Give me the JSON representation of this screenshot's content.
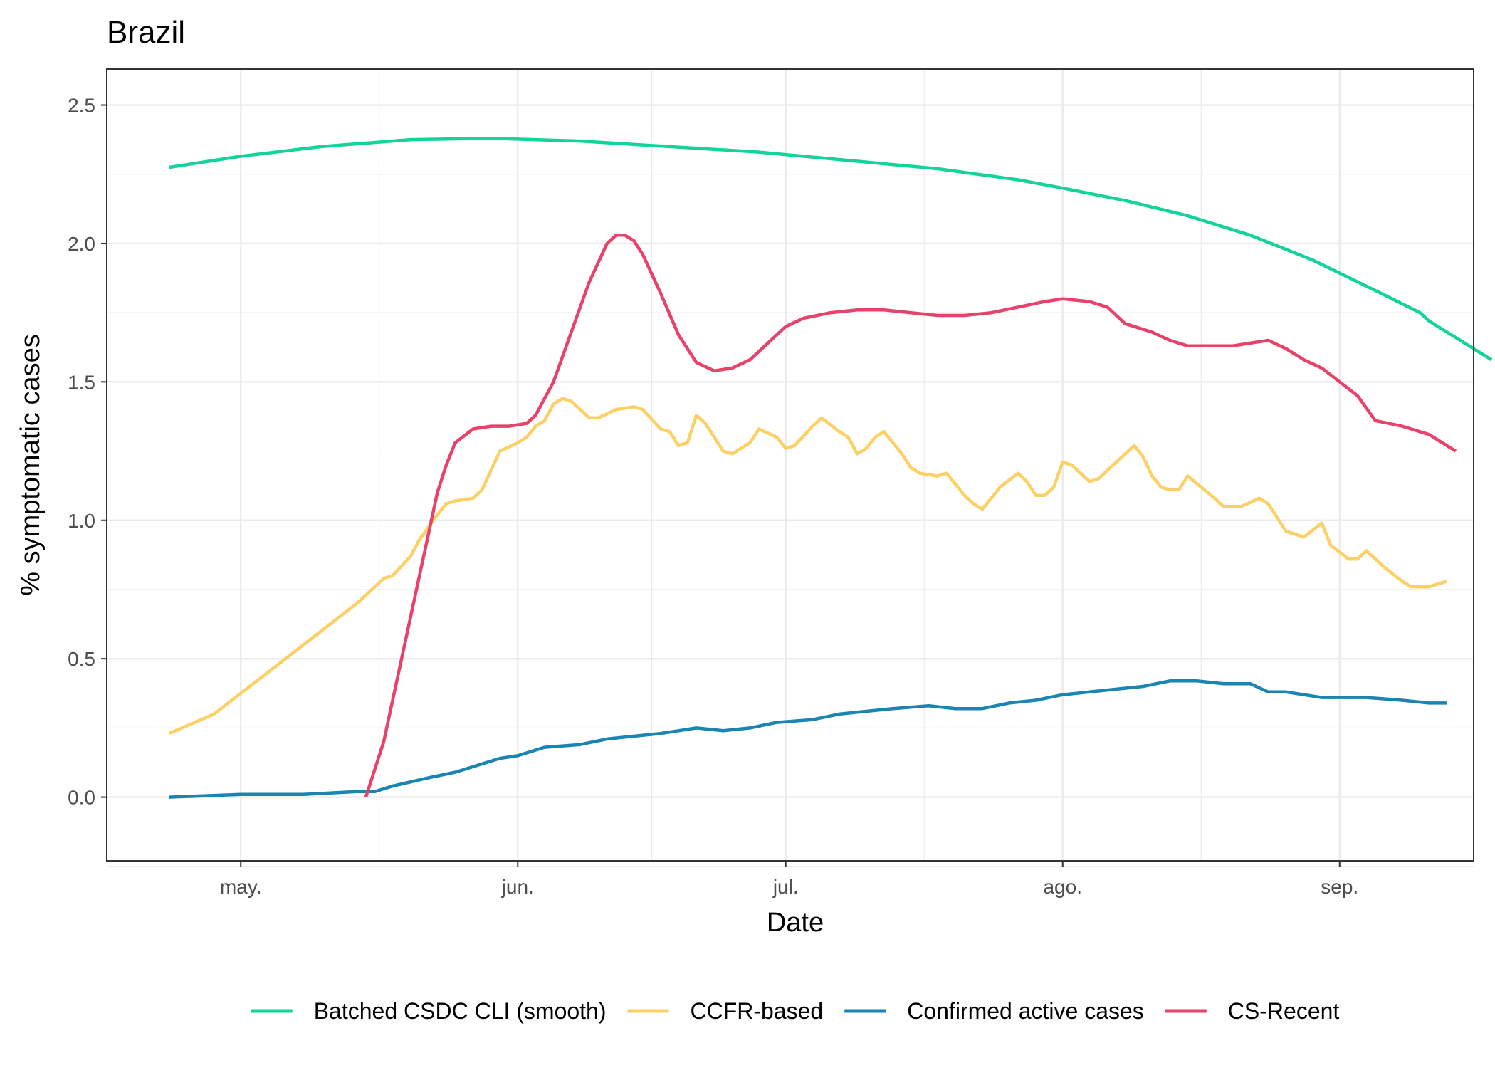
{
  "chart_data": {
    "type": "line",
    "title": "Brazil",
    "xlabel": "Date",
    "ylabel": "% symptomatic cases",
    "xlim": [
      "2020-04-16",
      "2020-09-16"
    ],
    "ylim": [
      -0.23,
      2.63
    ],
    "grid": true,
    "legend_position": "bottom",
    "x_ticks": [
      {
        "date": "2020-05-01",
        "label": "may."
      },
      {
        "date": "2020-06-01",
        "label": "jun."
      },
      {
        "date": "2020-07-01",
        "label": "jul."
      },
      {
        "date": "2020-08-01",
        "label": "ago."
      },
      {
        "date": "2020-09-01",
        "label": "sep."
      }
    ],
    "y_ticks": [
      {
        "value": 0.0,
        "label": "0.0"
      },
      {
        "value": 0.5,
        "label": "0.5"
      },
      {
        "value": 1.0,
        "label": "1.0"
      },
      {
        "value": 1.5,
        "label": "1.5"
      },
      {
        "value": 2.0,
        "label": "2.0"
      },
      {
        "value": 2.5,
        "label": "2.5"
      }
    ],
    "series": [
      {
        "name": "Batched CSDC CLI (smooth)",
        "color": "#12d39b",
        "points": [
          [
            "2020-04-23",
            2.275
          ],
          [
            "2020-05-01",
            2.315
          ],
          [
            "2020-05-10",
            2.35
          ],
          [
            "2020-05-20",
            2.375
          ],
          [
            "2020-05-29",
            2.38
          ],
          [
            "2020-06-08",
            2.37
          ],
          [
            "2020-06-18",
            2.35
          ],
          [
            "2020-06-28",
            2.33
          ],
          [
            "2020-07-08",
            2.3
          ],
          [
            "2020-07-18",
            2.27
          ],
          [
            "2020-07-27",
            2.23
          ],
          [
            "2020-08-01",
            2.2
          ],
          [
            "2020-08-08",
            2.155
          ],
          [
            "2020-08-15",
            2.1
          ],
          [
            "2020-08-22",
            2.03
          ],
          [
            "2020-08-29",
            1.94
          ],
          [
            "2020-09-05",
            1.83
          ],
          [
            "2020-09-10",
            1.75
          ],
          [
            "2020-09-11",
            1.72
          ],
          [
            "2020-09-15",
            1.64
          ],
          [
            "2020-09-18",
            1.58
          ]
        ]
      },
      {
        "name": "CCFR-based",
        "color": "#fdd066",
        "points": [
          [
            "2020-04-23",
            0.23
          ],
          [
            "2020-04-28",
            0.3
          ],
          [
            "2020-05-02",
            0.4
          ],
          [
            "2020-05-06",
            0.5
          ],
          [
            "2020-05-10",
            0.6
          ],
          [
            "2020-05-14",
            0.7
          ],
          [
            "2020-05-16",
            0.76
          ],
          [
            "2020-05-17",
            0.79
          ],
          [
            "2020-05-18",
            0.8
          ],
          [
            "2020-05-20",
            0.87
          ],
          [
            "2020-05-21",
            0.93
          ],
          [
            "2020-05-23",
            1.02
          ],
          [
            "2020-05-24",
            1.06
          ],
          [
            "2020-05-25",
            1.07
          ],
          [
            "2020-05-27",
            1.08
          ],
          [
            "2020-05-28",
            1.11
          ],
          [
            "2020-05-30",
            1.25
          ],
          [
            "2020-06-01",
            1.28
          ],
          [
            "2020-06-02",
            1.3
          ],
          [
            "2020-06-03",
            1.34
          ],
          [
            "2020-06-04",
            1.36
          ],
          [
            "2020-06-05",
            1.42
          ],
          [
            "2020-06-06",
            1.44
          ],
          [
            "2020-06-07",
            1.43
          ],
          [
            "2020-06-09",
            1.37
          ],
          [
            "2020-06-10",
            1.37
          ],
          [
            "2020-06-12",
            1.4
          ],
          [
            "2020-06-14",
            1.41
          ],
          [
            "2020-06-15",
            1.4
          ],
          [
            "2020-06-17",
            1.33
          ],
          [
            "2020-06-18",
            1.32
          ],
          [
            "2020-06-19",
            1.27
          ],
          [
            "2020-06-20",
            1.28
          ],
          [
            "2020-06-21",
            1.38
          ],
          [
            "2020-06-22",
            1.35
          ],
          [
            "2020-06-24",
            1.25
          ],
          [
            "2020-06-25",
            1.24
          ],
          [
            "2020-06-27",
            1.28
          ],
          [
            "2020-06-28",
            1.33
          ],
          [
            "2020-06-30",
            1.3
          ],
          [
            "2020-07-01",
            1.26
          ],
          [
            "2020-07-02",
            1.27
          ],
          [
            "2020-07-04",
            1.34
          ],
          [
            "2020-07-05",
            1.37
          ],
          [
            "2020-07-07",
            1.32
          ],
          [
            "2020-07-08",
            1.3
          ],
          [
            "2020-07-09",
            1.24
          ],
          [
            "2020-07-10",
            1.26
          ],
          [
            "2020-07-11",
            1.3
          ],
          [
            "2020-07-12",
            1.32
          ],
          [
            "2020-07-14",
            1.24
          ],
          [
            "2020-07-15",
            1.19
          ],
          [
            "2020-07-16",
            1.17
          ],
          [
            "2020-07-18",
            1.16
          ],
          [
            "2020-07-19",
            1.17
          ],
          [
            "2020-07-20",
            1.13
          ],
          [
            "2020-07-21",
            1.09
          ],
          [
            "2020-07-22",
            1.06
          ],
          [
            "2020-07-23",
            1.04
          ],
          [
            "2020-07-25",
            1.12
          ],
          [
            "2020-07-27",
            1.17
          ],
          [
            "2020-07-28",
            1.14
          ],
          [
            "2020-07-29",
            1.09
          ],
          [
            "2020-07-30",
            1.09
          ],
          [
            "2020-07-31",
            1.12
          ],
          [
            "2020-08-01",
            1.21
          ],
          [
            "2020-08-02",
            1.2
          ],
          [
            "2020-08-04",
            1.14
          ],
          [
            "2020-08-05",
            1.15
          ],
          [
            "2020-08-07",
            1.21
          ],
          [
            "2020-08-09",
            1.27
          ],
          [
            "2020-08-10",
            1.23
          ],
          [
            "2020-08-11",
            1.16
          ],
          [
            "2020-08-12",
            1.12
          ],
          [
            "2020-08-13",
            1.11
          ],
          [
            "2020-08-14",
            1.11
          ],
          [
            "2020-08-15",
            1.16
          ],
          [
            "2020-08-18",
            1.08
          ],
          [
            "2020-08-19",
            1.05
          ],
          [
            "2020-08-21",
            1.05
          ],
          [
            "2020-08-23",
            1.08
          ],
          [
            "2020-08-24",
            1.06
          ],
          [
            "2020-08-26",
            0.96
          ],
          [
            "2020-08-28",
            0.94
          ],
          [
            "2020-08-30",
            0.99
          ],
          [
            "2020-08-31",
            0.91
          ],
          [
            "2020-09-02",
            0.86
          ],
          [
            "2020-09-03",
            0.86
          ],
          [
            "2020-09-04",
            0.89
          ],
          [
            "2020-09-06",
            0.83
          ],
          [
            "2020-09-08",
            0.78
          ],
          [
            "2020-09-09",
            0.76
          ],
          [
            "2020-09-11",
            0.76
          ],
          [
            "2020-09-12",
            0.77
          ],
          [
            "2020-09-13",
            0.78
          ]
        ]
      },
      {
        "name": "Confirmed active cases",
        "color": "#1885b2",
        "points": [
          [
            "2020-04-23",
            0.0
          ],
          [
            "2020-05-01",
            0.01
          ],
          [
            "2020-05-08",
            0.01
          ],
          [
            "2020-05-14",
            0.02
          ],
          [
            "2020-05-16",
            0.02
          ],
          [
            "2020-05-18",
            0.04
          ],
          [
            "2020-05-22",
            0.07
          ],
          [
            "2020-05-25",
            0.09
          ],
          [
            "2020-05-28",
            0.12
          ],
          [
            "2020-05-30",
            0.14
          ],
          [
            "2020-06-01",
            0.15
          ],
          [
            "2020-06-04",
            0.18
          ],
          [
            "2020-06-08",
            0.19
          ],
          [
            "2020-06-11",
            0.21
          ],
          [
            "2020-06-14",
            0.22
          ],
          [
            "2020-06-17",
            0.23
          ],
          [
            "2020-06-19",
            0.24
          ],
          [
            "2020-06-21",
            0.25
          ],
          [
            "2020-06-24",
            0.24
          ],
          [
            "2020-06-27",
            0.25
          ],
          [
            "2020-06-30",
            0.27
          ],
          [
            "2020-07-04",
            0.28
          ],
          [
            "2020-07-07",
            0.3
          ],
          [
            "2020-07-10",
            0.31
          ],
          [
            "2020-07-13",
            0.32
          ],
          [
            "2020-07-17",
            0.33
          ],
          [
            "2020-07-20",
            0.32
          ],
          [
            "2020-07-23",
            0.32
          ],
          [
            "2020-07-26",
            0.34
          ],
          [
            "2020-07-29",
            0.35
          ],
          [
            "2020-08-01",
            0.37
          ],
          [
            "2020-08-04",
            0.38
          ],
          [
            "2020-08-07",
            0.39
          ],
          [
            "2020-08-10",
            0.4
          ],
          [
            "2020-08-13",
            0.42
          ],
          [
            "2020-08-16",
            0.42
          ],
          [
            "2020-08-19",
            0.41
          ],
          [
            "2020-08-22",
            0.41
          ],
          [
            "2020-08-24",
            0.38
          ],
          [
            "2020-08-26",
            0.38
          ],
          [
            "2020-08-28",
            0.37
          ],
          [
            "2020-08-30",
            0.36
          ],
          [
            "2020-09-01",
            0.36
          ],
          [
            "2020-09-04",
            0.36
          ],
          [
            "2020-09-08",
            0.35
          ],
          [
            "2020-09-11",
            0.34
          ],
          [
            "2020-09-13",
            0.34
          ]
        ]
      },
      {
        "name": "CS-Recent",
        "color": "#e8426b",
        "points": [
          [
            "2020-05-15",
            0.0
          ],
          [
            "2020-05-17",
            0.2
          ],
          [
            "2020-05-19",
            0.5
          ],
          [
            "2020-05-21",
            0.8
          ],
          [
            "2020-05-22",
            0.95
          ],
          [
            "2020-05-23",
            1.1
          ],
          [
            "2020-05-24",
            1.2
          ],
          [
            "2020-05-25",
            1.28
          ],
          [
            "2020-05-27",
            1.33
          ],
          [
            "2020-05-29",
            1.34
          ],
          [
            "2020-05-31",
            1.34
          ],
          [
            "2020-06-02",
            1.35
          ],
          [
            "2020-06-03",
            1.38
          ],
          [
            "2020-06-05",
            1.5
          ],
          [
            "2020-06-07",
            1.68
          ],
          [
            "2020-06-09",
            1.86
          ],
          [
            "2020-06-11",
            2.0
          ],
          [
            "2020-06-12",
            2.03
          ],
          [
            "2020-06-13",
            2.03
          ],
          [
            "2020-06-14",
            2.01
          ],
          [
            "2020-06-15",
            1.96
          ],
          [
            "2020-06-17",
            1.82
          ],
          [
            "2020-06-19",
            1.67
          ],
          [
            "2020-06-21",
            1.57
          ],
          [
            "2020-06-23",
            1.54
          ],
          [
            "2020-06-25",
            1.55
          ],
          [
            "2020-06-27",
            1.58
          ],
          [
            "2020-06-29",
            1.64
          ],
          [
            "2020-07-01",
            1.7
          ],
          [
            "2020-07-03",
            1.73
          ],
          [
            "2020-07-06",
            1.75
          ],
          [
            "2020-07-09",
            1.76
          ],
          [
            "2020-07-12",
            1.76
          ],
          [
            "2020-07-15",
            1.75
          ],
          [
            "2020-07-18",
            1.74
          ],
          [
            "2020-07-21",
            1.74
          ],
          [
            "2020-07-24",
            1.75
          ],
          [
            "2020-07-27",
            1.77
          ],
          [
            "2020-07-30",
            1.79
          ],
          [
            "2020-08-01",
            1.8
          ],
          [
            "2020-08-04",
            1.79
          ],
          [
            "2020-08-06",
            1.77
          ],
          [
            "2020-08-08",
            1.71
          ],
          [
            "2020-08-11",
            1.68
          ],
          [
            "2020-08-13",
            1.65
          ],
          [
            "2020-08-15",
            1.63
          ],
          [
            "2020-08-18",
            1.63
          ],
          [
            "2020-08-20",
            1.63
          ],
          [
            "2020-08-22",
            1.64
          ],
          [
            "2020-08-24",
            1.65
          ],
          [
            "2020-08-26",
            1.62
          ],
          [
            "2020-08-28",
            1.58
          ],
          [
            "2020-08-30",
            1.55
          ],
          [
            "2020-09-01",
            1.5
          ],
          [
            "2020-09-03",
            1.45
          ],
          [
            "2020-09-05",
            1.36
          ],
          [
            "2020-09-08",
            1.34
          ],
          [
            "2020-09-11",
            1.31
          ],
          [
            "2020-09-13",
            1.27
          ],
          [
            "2020-09-14",
            1.25
          ]
        ]
      }
    ]
  }
}
